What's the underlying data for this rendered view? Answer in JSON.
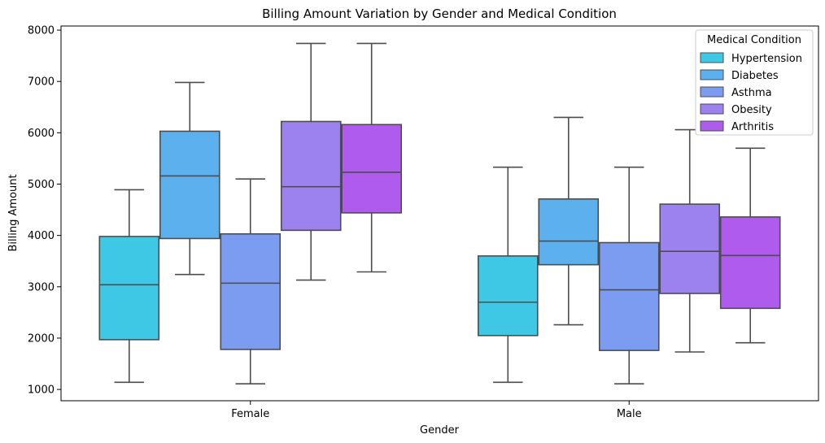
{
  "chart_data": {
    "type": "box",
    "title": "Billing Amount Variation by Gender and Medical Condition",
    "xlabel": "Gender",
    "ylabel": "Billing Amount",
    "categories": [
      "Female",
      "Male"
    ],
    "ylim": [
      780,
      8080
    ],
    "yticks": [
      1000,
      2000,
      3000,
      4000,
      5000,
      6000,
      7000,
      8000
    ],
    "legend": {
      "title": "Medical Condition",
      "placement": "top-right"
    },
    "line_color": "#4d4d4d",
    "series": [
      {
        "name": "Hypertension",
        "color": "#3ec8e5",
        "boxes": [
          {
            "min": 1140,
            "q1": 1970,
            "median": 3040,
            "q3": 3980,
            "max": 4890
          },
          {
            "min": 1140,
            "q1": 2050,
            "median": 2700,
            "q3": 3600,
            "max": 5330
          }
        ]
      },
      {
        "name": "Diabetes",
        "color": "#5cb0ee",
        "boxes": [
          {
            "min": 3240,
            "q1": 3940,
            "median": 5160,
            "q3": 6030,
            "max": 6980
          },
          {
            "min": 2260,
            "q1": 3430,
            "median": 3890,
            "q3": 4710,
            "max": 6300
          }
        ]
      },
      {
        "name": "Asthma",
        "color": "#7b9cf0",
        "boxes": [
          {
            "min": 1110,
            "q1": 1780,
            "median": 3070,
            "q3": 4030,
            "max": 5100
          },
          {
            "min": 1110,
            "q1": 1760,
            "median": 2940,
            "q3": 3860,
            "max": 5330
          }
        ]
      },
      {
        "name": "Obesity",
        "color": "#9c82ef",
        "boxes": [
          {
            "min": 3130,
            "q1": 4100,
            "median": 4950,
            "q3": 6220,
            "max": 7740
          },
          {
            "min": 1730,
            "q1": 2870,
            "median": 3690,
            "q3": 4610,
            "max": 6060
          }
        ]
      },
      {
        "name": "Arthritis",
        "color": "#af5cee",
        "boxes": [
          {
            "min": 3290,
            "q1": 4440,
            "median": 5230,
            "q3": 6160,
            "max": 7740
          },
          {
            "min": 1910,
            "q1": 2580,
            "median": 3610,
            "q3": 4360,
            "max": 5700
          }
        ]
      }
    ]
  }
}
